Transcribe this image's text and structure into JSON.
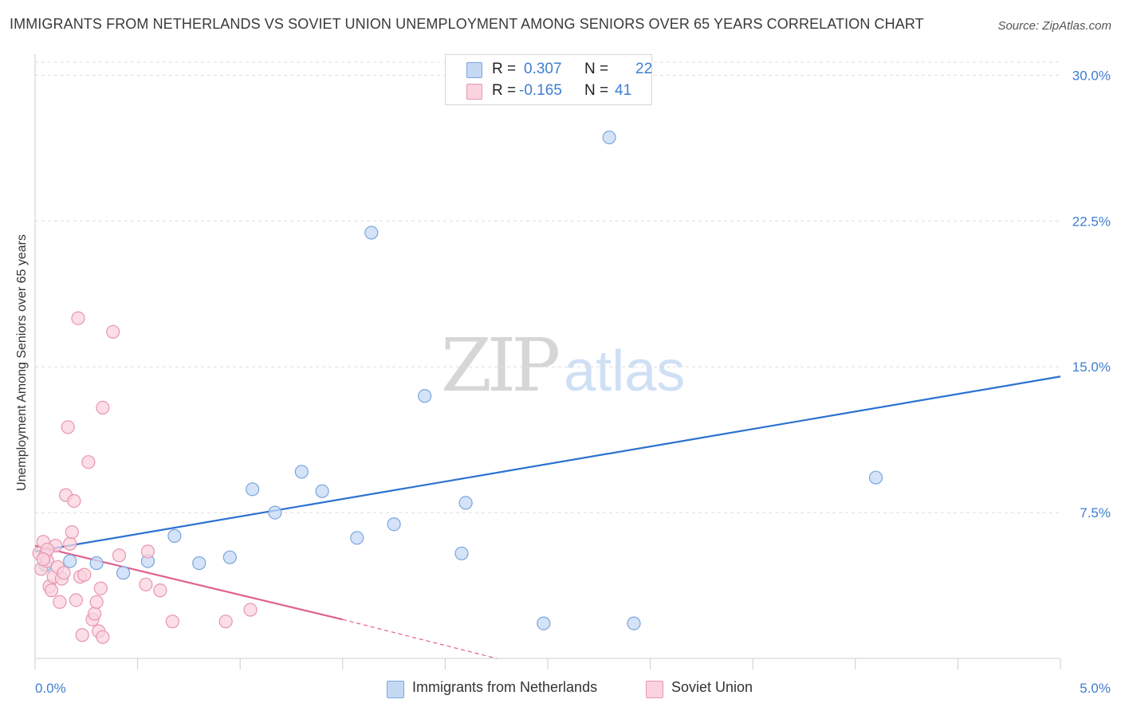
{
  "title": "IMMIGRANTS FROM NETHERLANDS VS SOVIET UNION UNEMPLOYMENT AMONG SENIORS OVER 65 YEARS CORRELATION CHART",
  "source": "Source: ZipAtlas.com",
  "watermark": {
    "zip": "ZIP",
    "atlas": "atlas"
  },
  "legend": {
    "rows": [
      {
        "r_label": "R =",
        "r_value": "0.307",
        "n_label": "N =",
        "n_value": "22",
        "color": "#aac8f0",
        "border": "#6f9fd8"
      },
      {
        "r_label": "R =",
        "r_value": "-0.165",
        "n_label": "N =",
        "n_value": "41",
        "color": "#f8c0d0",
        "border": "#e68aa8"
      }
    ]
  },
  "colors": {
    "blue_fill": "#c5d9f5",
    "blue_stroke": "#7aa5dc",
    "blue_line": "#2b72d0",
    "pink_fill": "#fad3de",
    "pink_stroke": "#e895b0",
    "pink_line": "#e06090",
    "grid": "#dddddd",
    "axis_text": "#3f7ed1"
  },
  "chart_data": {
    "type": "scatter",
    "title": "IMMIGRANTS FROM NETHERLANDS VS SOVIET UNION UNEMPLOYMENT AMONG SENIORS OVER 65 YEARS CORRELATION CHART",
    "xlabel": "",
    "ylabel": "Unemployment Among Seniors over 65 years",
    "xlim": [
      0,
      5
    ],
    "ylim": [
      0,
      31
    ],
    "x_tick_labels": [
      "0.0%",
      "5.0%"
    ],
    "y_ticks": [
      7.5,
      15.0,
      22.5,
      30.0
    ],
    "y_tick_labels": [
      "7.5%",
      "15.0%",
      "22.5%",
      "30.0%"
    ],
    "grid": true,
    "series": [
      {
        "name": "Immigrants from Netherlands",
        "points": [
          [
            0.05,
            4.8
          ],
          [
            0.17,
            5.0
          ],
          [
            0.3,
            4.9
          ],
          [
            0.43,
            4.4
          ],
          [
            0.55,
            5.0
          ],
          [
            0.68,
            6.3
          ],
          [
            0.8,
            4.9
          ],
          [
            0.95,
            5.2
          ],
          [
            1.06,
            8.7
          ],
          [
            1.17,
            7.5
          ],
          [
            1.3,
            9.6
          ],
          [
            1.4,
            8.6
          ],
          [
            1.57,
            6.2
          ],
          [
            1.64,
            21.9
          ],
          [
            1.75,
            6.9
          ],
          [
            1.9,
            13.5
          ],
          [
            2.08,
            5.4
          ],
          [
            2.1,
            8.0
          ],
          [
            2.48,
            1.8
          ],
          [
            2.8,
            26.8
          ],
          [
            2.92,
            1.8
          ],
          [
            4.1,
            9.3
          ]
        ],
        "trend": {
          "x0": 0.0,
          "y0": 5.5,
          "x1": 5.0,
          "y1": 14.5
        }
      },
      {
        "name": "Soviet Union",
        "points": [
          [
            0.02,
            5.4
          ],
          [
            0.03,
            4.6
          ],
          [
            0.04,
            6.0
          ],
          [
            0.05,
            5.3
          ],
          [
            0.06,
            5.0
          ],
          [
            0.07,
            3.7
          ],
          [
            0.08,
            3.5
          ],
          [
            0.09,
            4.2
          ],
          [
            0.1,
            5.8
          ],
          [
            0.11,
            4.7
          ],
          [
            0.12,
            2.9
          ],
          [
            0.13,
            4.1
          ],
          [
            0.14,
            4.4
          ],
          [
            0.15,
            8.4
          ],
          [
            0.16,
            11.9
          ],
          [
            0.17,
            5.9
          ],
          [
            0.18,
            6.5
          ],
          [
            0.19,
            8.1
          ],
          [
            0.2,
            3.0
          ],
          [
            0.22,
            4.2
          ],
          [
            0.23,
            1.2
          ],
          [
            0.24,
            4.3
          ],
          [
            0.21,
            17.5
          ],
          [
            0.26,
            10.1
          ],
          [
            0.28,
            2.0
          ],
          [
            0.29,
            2.3
          ],
          [
            0.3,
            2.9
          ],
          [
            0.31,
            1.4
          ],
          [
            0.32,
            3.6
          ],
          [
            0.33,
            1.1
          ],
          [
            0.33,
            12.9
          ],
          [
            0.38,
            16.8
          ],
          [
            0.41,
            5.3
          ],
          [
            0.54,
            3.8
          ],
          [
            0.55,
            5.5
          ],
          [
            0.61,
            3.5
          ],
          [
            0.67,
            1.9
          ],
          [
            0.93,
            1.9
          ],
          [
            1.05,
            2.5
          ],
          [
            0.06,
            5.6
          ],
          [
            0.04,
            5.1
          ]
        ],
        "trend": {
          "x0": 0.0,
          "y0": 5.8,
          "x1": 1.5,
          "y1": 2.0
        },
        "trend_dashed_extension": {
          "x0": 1.5,
          "y0": 2.0,
          "x1": 2.25,
          "y1": 0.0
        }
      }
    ]
  },
  "bottom_legend": [
    "Immigrants from Netherlands",
    "Soviet Union"
  ]
}
